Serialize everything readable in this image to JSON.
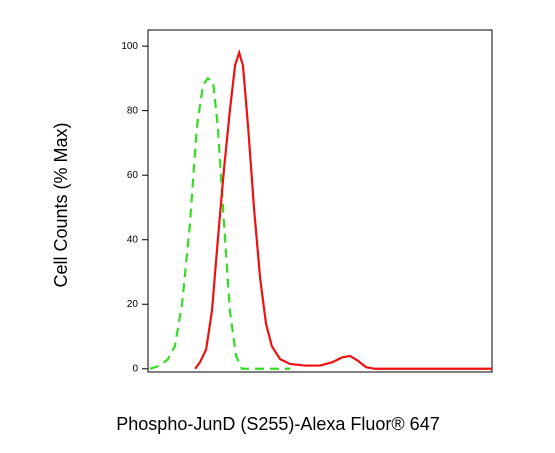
{
  "chart_data": {
    "type": "line",
    "xlabel": "Phospho-JunD (S255)-Alexa Fluor® 647",
    "ylabel": "Cell Counts (% Max)",
    "xlim": [
      0,
      100
    ],
    "ylim": [
      -1,
      105
    ],
    "yticks": [
      0,
      20,
      40,
      60,
      80,
      100
    ],
    "series": [
      {
        "color": "#33dd22",
        "dash": true,
        "x": [
          0.6,
          3.5,
          5.8,
          7.8,
          9.9,
          12.2,
          14.2,
          16,
          17.4,
          18.9,
          20.3,
          22.1,
          23.8,
          25.6,
          27.3,
          41.3
        ],
        "values": [
          0,
          1,
          3,
          7,
          20,
          45,
          75,
          88,
          90,
          89,
          75,
          45,
          18,
          4,
          0,
          0
        ]
      },
      {
        "color": "#ee1111",
        "dash": false,
        "x": [
          13.7,
          15.1,
          16.9,
          18.6,
          20.3,
          22.1,
          23.8,
          25.3,
          26.5,
          27.6,
          29.1,
          30.8,
          32.6,
          34.3,
          36,
          38.4,
          41.3,
          45.6,
          50,
          53.5,
          56.4,
          58.7,
          61,
          63.4,
          66,
          100
        ],
        "values": [
          0,
          2,
          6,
          18,
          40,
          62,
          80,
          94,
          98,
          94,
          75,
          50,
          28,
          14,
          7,
          3,
          1.5,
          1,
          1,
          2,
          3.5,
          4,
          2.5,
          0.5,
          0,
          0
        ]
      }
    ]
  }
}
